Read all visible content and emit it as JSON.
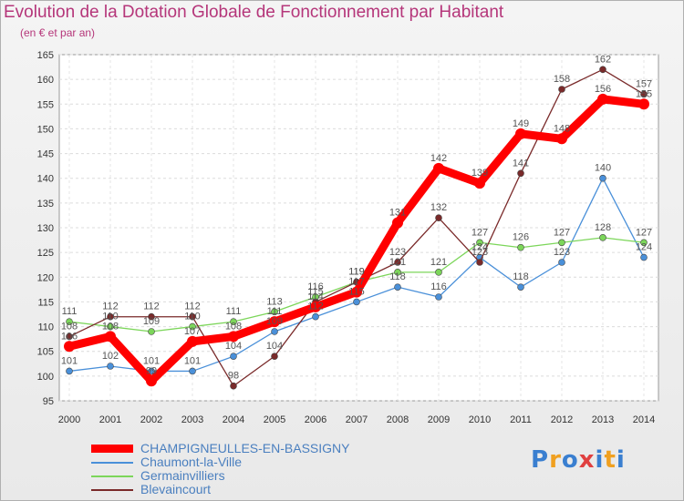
{
  "chart_data": {
    "type": "line",
    "title": "Evolution de la Dotation Globale de Fonctionnement par Habitant",
    "subtitle": "(en € et par an)",
    "x": [
      "2000",
      "2001",
      "2002",
      "2003",
      "2004",
      "2005",
      "2006",
      "2007",
      "2008",
      "2009",
      "2010",
      "2011",
      "2012",
      "2013",
      "2014"
    ],
    "ylim": [
      95,
      165
    ],
    "yticks": [
      95,
      100,
      105,
      110,
      115,
      120,
      125,
      130,
      135,
      140,
      145,
      150,
      155,
      160,
      165
    ],
    "grid": true,
    "legend_position": "bottom-left",
    "series": [
      {
        "name": "CHAMPIGNEULLES-EN-BASSIGNY",
        "color": "#ff0000",
        "values": [
          106,
          108,
          99,
          107,
          108,
          111,
          114,
          117,
          131,
          142,
          139,
          149,
          148,
          156,
          155
        ]
      },
      {
        "name": "Chaumont-la-Ville",
        "color": "#4a90d9",
        "values": [
          101,
          102,
          101,
          101,
          104,
          109,
          112,
          115,
          118,
          116,
          124,
          118,
          123,
          140,
          124
        ]
      },
      {
        "name": "Germainvilliers",
        "color": "#7cd65a",
        "values": [
          111,
          110,
          109,
          110,
          111,
          113,
          116,
          119,
          121,
          121,
          127,
          126,
          127,
          128,
          127
        ]
      },
      {
        "name": "Blevaincourt",
        "color": "#7a2a2a",
        "values": [
          108,
          112,
          112,
          112,
          98,
          104,
          115,
          119,
          123,
          132,
          123,
          141,
          158,
          162,
          157
        ]
      }
    ]
  },
  "logo": {
    "text": "Proxiti",
    "letters": [
      "P",
      "r",
      "o",
      "x",
      "i",
      "t",
      "i"
    ],
    "colors": [
      "#3a7fd0",
      "#f0a020",
      "#3a7fd0",
      "#e04040",
      "#3a7fd0",
      "#f0a020",
      "#3a7fd0"
    ]
  }
}
